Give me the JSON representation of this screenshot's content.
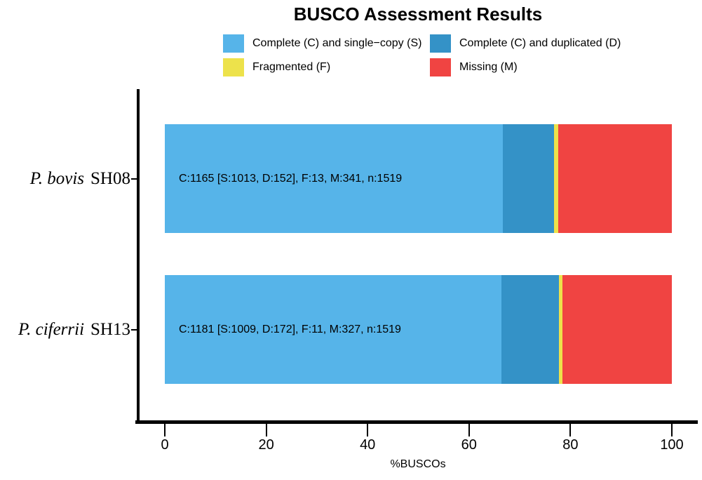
{
  "title": "BUSCO Assessment Results",
  "legend": {
    "items": [
      {
        "key": "S",
        "label": "Complete (C) and single−copy (S)",
        "color": "#56B4E9"
      },
      {
        "key": "D",
        "label": "Complete (C) and duplicated (D)",
        "color": "#3492C7"
      },
      {
        "key": "F",
        "label": "Fragmented (F)",
        "color": "#EDE24B"
      },
      {
        "key": "M",
        "label": "Missing (M)",
        "color": "#F04442"
      }
    ]
  },
  "chart_data": {
    "type": "bar",
    "orientation": "horizontal",
    "stacked": true,
    "title": "BUSCO Assessment Results",
    "xlabel": "%BUSCOs",
    "xlim": [
      0,
      100
    ],
    "xticks": [
      "0",
      "20",
      "40",
      "60",
      "80",
      "100"
    ],
    "grid": false,
    "legend_position": "top",
    "categories": [
      "P. bovis SH08",
      "P. ciferrii SH13"
    ],
    "rows": [
      {
        "species": "P. bovis",
        "strain": "SH08",
        "annotation": "C:1165 [S:1013, D:152], F:13, M:341, n:1519",
        "counts": {
          "C": 1165,
          "S": 1013,
          "D": 152,
          "F": 13,
          "M": 341,
          "n": 1519
        }
      },
      {
        "species": "P. ciferrii",
        "strain": "SH13",
        "annotation": "C:1181 [S:1009, D:172], F:11, M:327, n:1519",
        "counts": {
          "C": 1181,
          "S": 1009,
          "D": 172,
          "F": 11,
          "M": 327,
          "n": 1519
        }
      }
    ],
    "series": [
      {
        "name": "Complete (C) and single−copy (S)",
        "key": "S",
        "color": "#56B4E9",
        "values": [
          66.69,
          66.42
        ]
      },
      {
        "name": "Complete (C) and duplicated (D)",
        "key": "D",
        "color": "#3492C7",
        "values": [
          10.01,
          11.32
        ]
      },
      {
        "name": "Fragmented (F)",
        "key": "F",
        "color": "#EDE24B",
        "values": [
          0.86,
          0.72
        ]
      },
      {
        "name": "Missing (M)",
        "key": "M",
        "color": "#F04442",
        "values": [
          22.45,
          21.53
        ]
      }
    ]
  }
}
